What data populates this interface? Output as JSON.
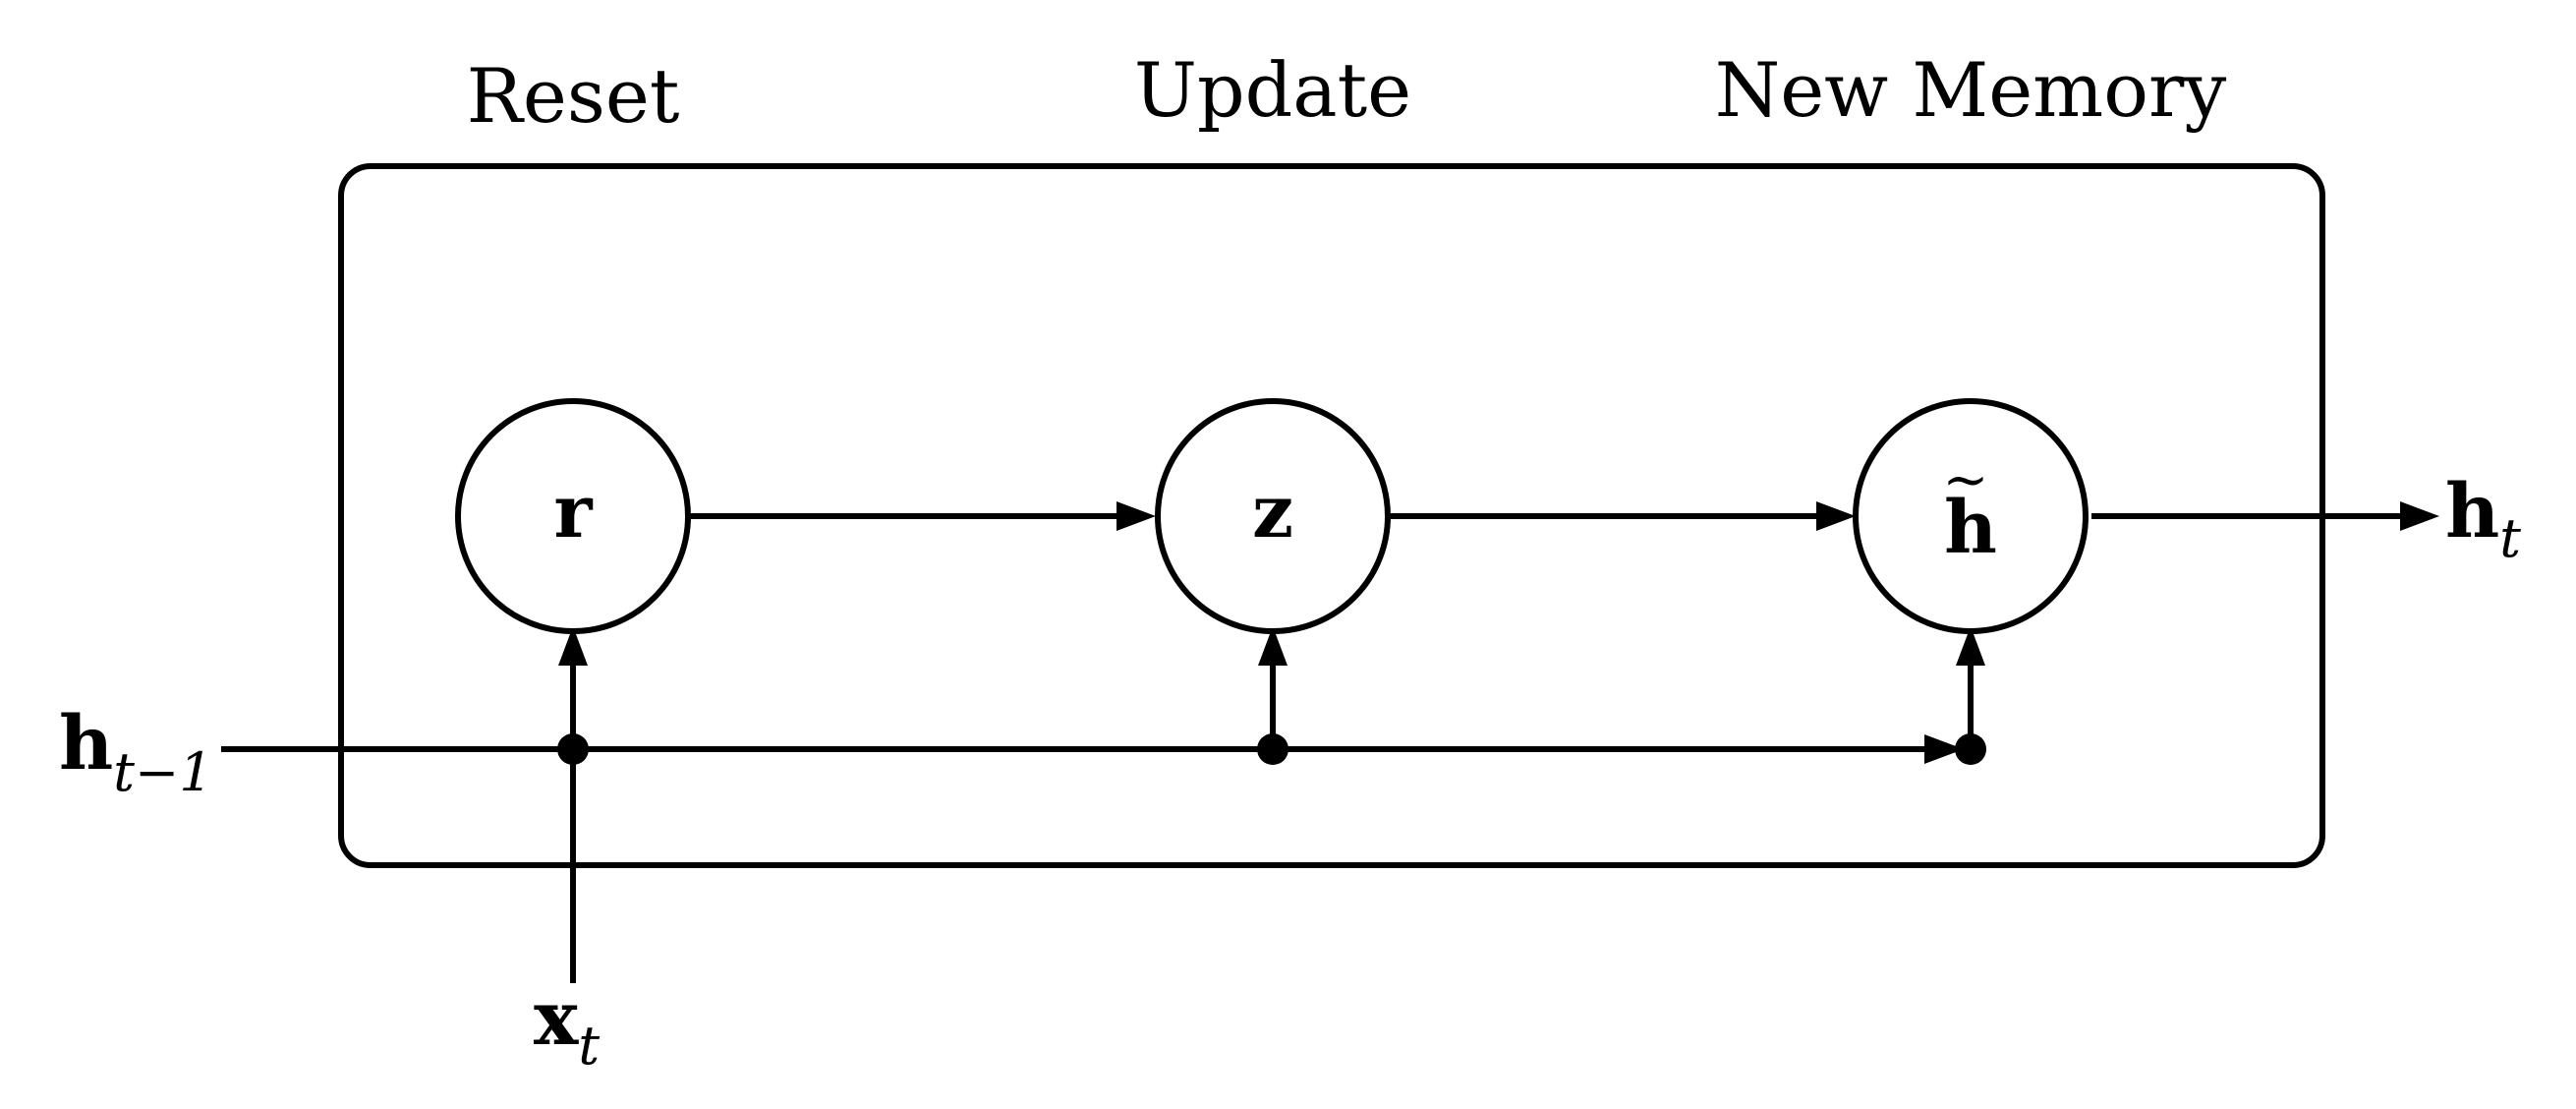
{
  "labels": {
    "reset": "Reset",
    "update": "Update",
    "new_memory": "New Memory"
  },
  "nodes": {
    "r": "r",
    "z": "z",
    "h_tilde": "h",
    "h_tilde_accent": "~"
  },
  "inputs": {
    "h_prev_main": "h",
    "h_prev_sub": "t−1",
    "x_main": "x",
    "x_sub": "t"
  },
  "outputs": {
    "h_main": "h",
    "h_sub": "t"
  }
}
